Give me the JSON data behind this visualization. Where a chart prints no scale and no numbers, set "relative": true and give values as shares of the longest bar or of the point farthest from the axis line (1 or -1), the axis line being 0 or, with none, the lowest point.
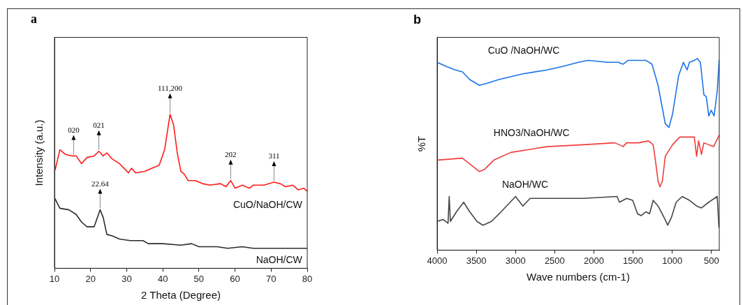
{
  "chart_data": [
    {
      "type": "line",
      "title": "a",
      "xlabel": "2 Theta (Degree)",
      "ylabel": "Intensity (a.u.)",
      "relative": true,
      "xlim": [
        10,
        80
      ],
      "xticks": [
        10,
        20,
        30,
        40,
        50,
        60,
        70,
        80
      ],
      "grid": false,
      "legend": false,
      "marker": "none",
      "line_style": "solid",
      "annotations": [
        {
          "text": "020",
          "x": 15.3,
          "y": 0.73
        },
        {
          "text": "021",
          "x": 22.3,
          "y": 0.76
        },
        {
          "text": "111,200",
          "x": 42,
          "y": 1.0
        },
        {
          "text": "202",
          "x": 58.8,
          "y": 0.57
        },
        {
          "text": "311",
          "x": 70.8,
          "y": 0.56
        },
        {
          "text": "22.64",
          "x": 22.64,
          "y": 0.38
        }
      ],
      "series": [
        {
          "name": "CuO/NaOH/CW",
          "color": "#ff1a1a",
          "x": [
            10.2,
            11.5,
            13,
            15,
            16,
            17.5,
            19,
            21,
            22.3,
            23.5,
            24.5,
            26,
            28,
            30.5,
            31.3,
            32.5,
            35,
            37,
            39,
            40.5,
            42,
            43,
            44,
            45,
            46,
            47,
            49,
            51,
            53,
            56,
            57.5,
            58.8,
            60,
            62,
            64,
            65,
            68,
            70.8,
            72.5,
            74,
            76,
            77.5,
            79,
            80
          ],
          "values": [
            0.64,
            0.77,
            0.74,
            0.73,
            0.73,
            0.68,
            0.72,
            0.73,
            0.76,
            0.73,
            0.75,
            0.71,
            0.68,
            0.62,
            0.65,
            0.62,
            0.63,
            0.65,
            0.67,
            0.77,
            1.0,
            0.93,
            0.75,
            0.63,
            0.61,
            0.57,
            0.57,
            0.55,
            0.54,
            0.55,
            0.53,
            0.57,
            0.52,
            0.54,
            0.52,
            0.54,
            0.54,
            0.56,
            0.55,
            0.53,
            0.54,
            0.51,
            0.52,
            0.5
          ]
        },
        {
          "name": "NaOH/CW",
          "color": "#2b2b2b",
          "x": [
            10.2,
            11.5,
            14,
            16,
            17.5,
            19,
            21,
            22.64,
            23.5,
            24.5,
            26,
            28,
            31,
            33,
            34.5,
            36,
            40,
            45,
            48,
            50,
            55,
            58,
            62,
            65,
            70,
            75,
            80
          ],
          "values": [
            0.45,
            0.39,
            0.38,
            0.35,
            0.3,
            0.27,
            0.27,
            0.38,
            0.33,
            0.22,
            0.21,
            0.19,
            0.18,
            0.18,
            0.18,
            0.16,
            0.16,
            0.15,
            0.16,
            0.14,
            0.14,
            0.13,
            0.14,
            0.13,
            0.13,
            0.13,
            0.13
          ]
        }
      ]
    },
    {
      "type": "line",
      "title": "b",
      "xlabel": "Wave numbers (cm-1)",
      "ylabel": "%T",
      "relative": true,
      "xlim": [
        4000,
        400
      ],
      "xticks": [
        4000,
        3500,
        3000,
        2500,
        2000,
        1500,
        1000,
        500
      ],
      "grid": false,
      "legend": false,
      "marker": "none",
      "line_style": "solid",
      "series": [
        {
          "name": "CuO /NaOH/WC",
          "color": "#1a73e8",
          "x": [
            4000,
            3892,
            3769,
            3677,
            3584,
            3460,
            3368,
            3214,
            2906,
            2598,
            2382,
            2198,
            2074,
            1828,
            1689,
            1628,
            1566,
            1335,
            1258,
            1181,
            1089,
            1042,
            996,
            919,
            857,
            811,
            780,
            719,
            681,
            641,
            596,
            565,
            534,
            503,
            466,
            426,
            401
          ],
          "values": [
            0.98,
            0.96,
            0.94,
            0.93,
            0.89,
            0.86,
            0.87,
            0.89,
            0.92,
            0.94,
            0.96,
            0.98,
            0.99,
            0.98,
            0.98,
            0.97,
            0.99,
            0.99,
            0.97,
            0.86,
            0.66,
            0.64,
            0.71,
            0.91,
            0.98,
            0.94,
            0.98,
            0.99,
            1.0,
            0.98,
            0.81,
            0.8,
            0.7,
            0.73,
            0.7,
            0.83,
            0.99
          ]
        },
        {
          "name": "HNO3/NaOH/WC",
          "color": "#f03c3c",
          "x": [
            4000,
            3677,
            3553,
            3460,
            3399,
            3276,
            3060,
            2598,
            2136,
            1736,
            1674,
            1628,
            1582,
            1427,
            1304,
            1243,
            1212,
            1181,
            1156,
            1126,
            1089,
            996,
            904,
            811,
            719,
            689,
            664,
            627,
            596,
            534,
            472,
            401
          ],
          "values": [
            0.47,
            0.48,
            0.44,
            0.41,
            0.42,
            0.47,
            0.51,
            0.54,
            0.55,
            0.56,
            0.55,
            0.54,
            0.56,
            0.56,
            0.57,
            0.55,
            0.46,
            0.36,
            0.33,
            0.36,
            0.49,
            0.55,
            0.59,
            0.59,
            0.59,
            0.49,
            0.57,
            0.5,
            0.56,
            0.55,
            0.54,
            0.6
          ]
        },
        {
          "name": "NaOH/WC",
          "color": "#454545",
          "x": [
            4000,
            3923,
            3861,
            3846,
            3831,
            3754,
            3661,
            3584,
            3492,
            3415,
            3307,
            3184,
            2999,
            2906,
            2814,
            2598,
            2136,
            1705,
            1674,
            1582,
            1505,
            1443,
            1396,
            1335,
            1289,
            1243,
            1181,
            1104,
            1058,
            1011,
            950,
            873,
            780,
            688,
            627,
            534,
            426,
            404
          ],
          "values": [
            0.15,
            0.16,
            0.14,
            0.28,
            0.15,
            0.2,
            0.25,
            0.2,
            0.15,
            0.13,
            0.15,
            0.2,
            0.28,
            0.23,
            0.27,
            0.27,
            0.27,
            0.28,
            0.25,
            0.27,
            0.26,
            0.19,
            0.18,
            0.2,
            0.19,
            0.26,
            0.23,
            0.17,
            0.13,
            0.17,
            0.25,
            0.28,
            0.26,
            0.23,
            0.22,
            0.25,
            0.28,
            0.12
          ]
        }
      ]
    }
  ]
}
